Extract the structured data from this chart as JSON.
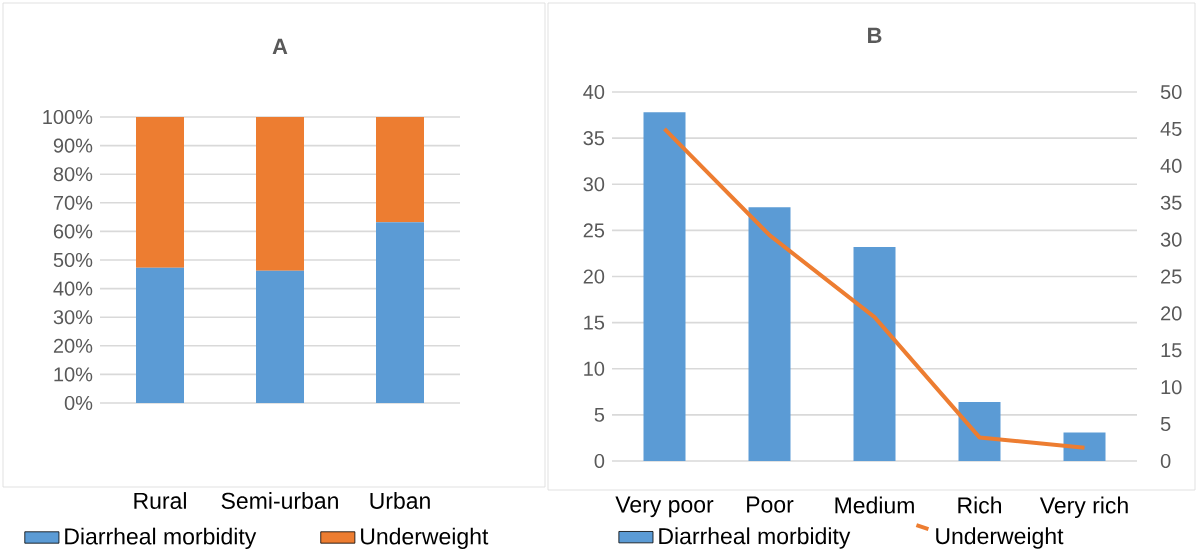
{
  "chart_data": [
    {
      "type": "bar",
      "title": "A",
      "stacked": true,
      "categories": [
        "Rural",
        "Semi-urban",
        "Urban"
      ],
      "series": [
        {
          "name": "Diarrheal morbidity",
          "color": "#5b9bd5",
          "values": [
            47.3,
            46.2,
            63.2
          ]
        },
        {
          "name": "Underweight",
          "color": "#ed7d31",
          "values": [
            52.7,
            53.8,
            36.8
          ]
        }
      ],
      "ylim": [
        0,
        100
      ],
      "yticks": [
        {
          "value": 0,
          "label": "0%"
        },
        {
          "value": 10,
          "label": "10%"
        },
        {
          "value": 20,
          "label": "20%"
        },
        {
          "value": 30,
          "label": "30%"
        },
        {
          "value": 40,
          "label": "40%"
        },
        {
          "value": 50,
          "label": "50%"
        },
        {
          "value": 60,
          "label": "60%"
        },
        {
          "value": 70,
          "label": "70%"
        },
        {
          "value": 80,
          "label": "80%"
        },
        {
          "value": 90,
          "label": "90%"
        },
        {
          "value": 100,
          "label": "100%"
        }
      ],
      "grid": "y",
      "legend": "bottom"
    },
    {
      "type": "bar",
      "title": "B",
      "categories": [
        "Very poor",
        "Poor",
        "Medium",
        "Rich",
        "Very rich"
      ],
      "series": [
        {
          "name": "Diarrheal morbidity",
          "color": "#5b9bd5",
          "values": [
            37.8,
            27.5,
            23.2,
            6.4,
            3.1
          ]
        },
        {
          "name": "Underweight",
          "color": "#ed7d31",
          "type": "line",
          "axis": "y2",
          "values": [
            45.0,
            30.6,
            19.5,
            3.2,
            1.8
          ]
        }
      ],
      "ylim": [
        0,
        40
      ],
      "yticks": [
        0,
        5,
        10,
        15,
        20,
        25,
        30,
        35,
        40
      ],
      "y2lim": [
        0,
        50
      ],
      "y2ticks": [
        0,
        5,
        10,
        15,
        20,
        25,
        30,
        35,
        40,
        45,
        50
      ],
      "grid": "y",
      "legend": "bottom"
    }
  ]
}
